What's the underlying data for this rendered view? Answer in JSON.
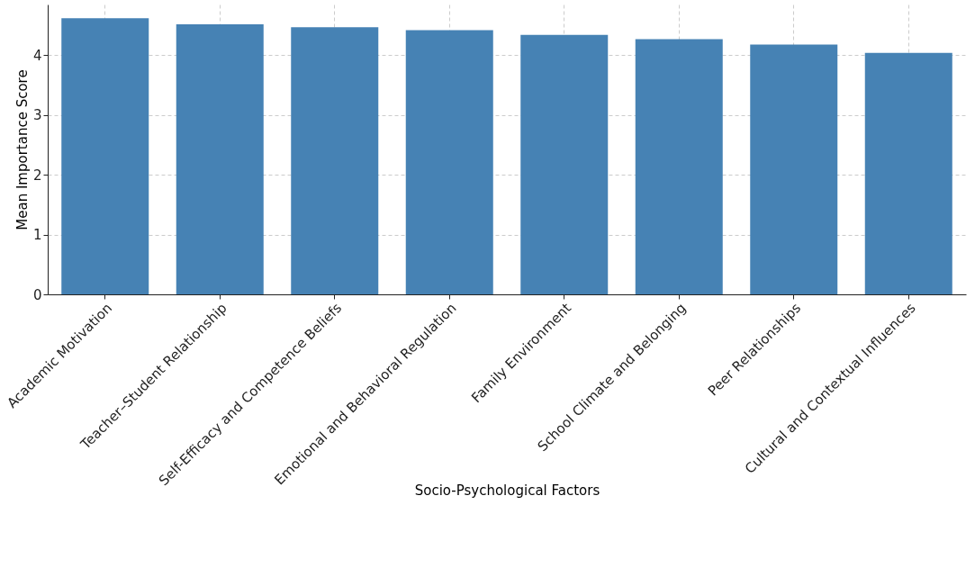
{
  "chart_data": {
    "type": "bar",
    "xlabel": "Socio-Psychological Factors",
    "ylabel": "Mean Importance Score",
    "categories": [
      "Academic Motivation",
      "Teacher–Student Relationship",
      "Self-Efficacy and Competence Beliefs",
      "Emotional and Behavioral Regulation",
      "Family Environment",
      "School Climate and Belonging",
      "Peer Relationships",
      "Cultural and Contextual Influences"
    ],
    "values": [
      4.62,
      4.52,
      4.47,
      4.42,
      4.34,
      4.27,
      4.18,
      4.04
    ],
    "color": "#4682b4",
    "ylim": [
      0,
      4.85
    ],
    "yticks": [
      0,
      1,
      2,
      3,
      4
    ],
    "grid": true
  }
}
